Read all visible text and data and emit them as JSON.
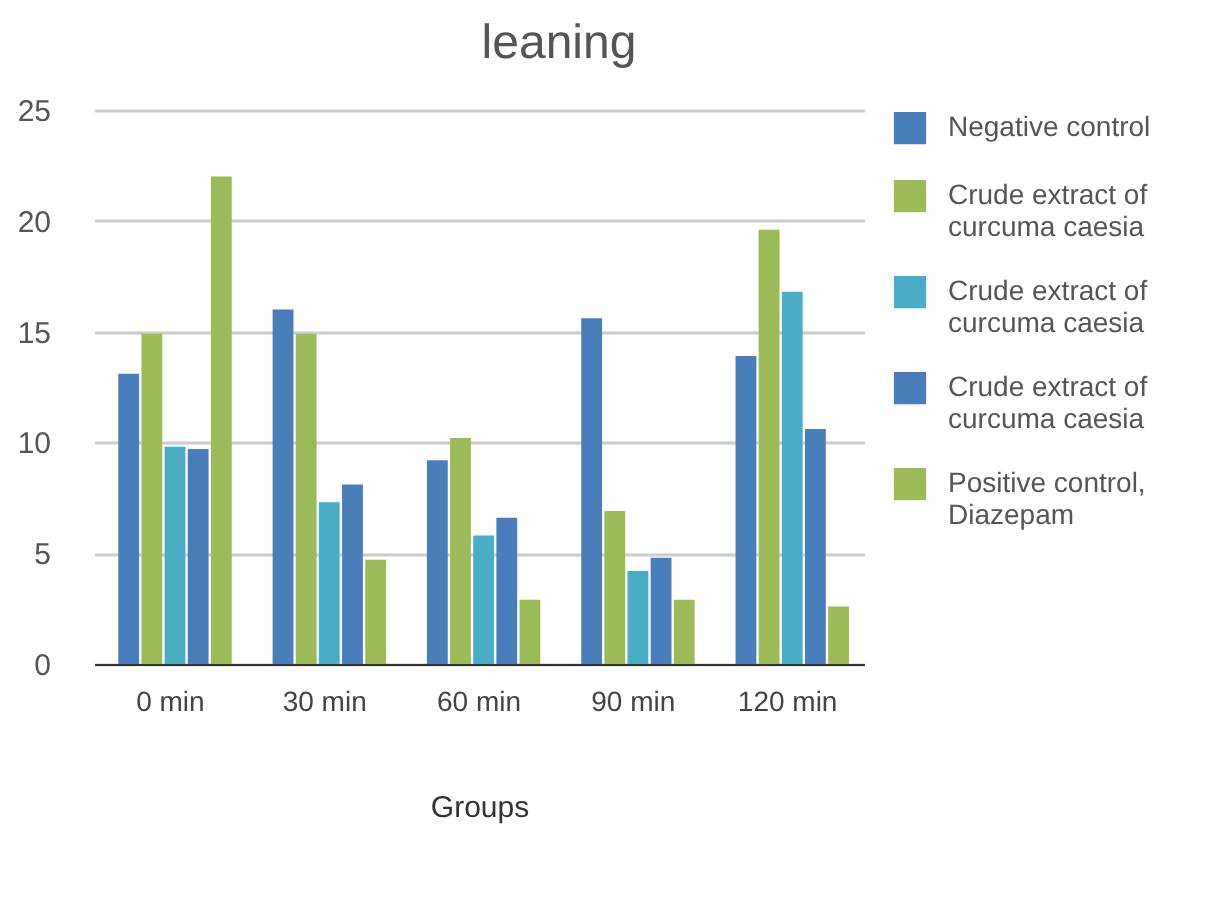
{
  "chart_data": {
    "type": "bar",
    "title": "leaning",
    "xlabel": "Groups",
    "categories": [
      "0 min",
      "30 min",
      "60 min",
      "90 min",
      "120 min"
    ],
    "series": [
      {
        "name": "Negative control",
        "color": "#4a7ebb",
        "values": [
          13.1,
          16.0,
          9.2,
          15.6,
          13.9
        ]
      },
      {
        "name": "Crude extract of curcuma caesia",
        "color": "#9bbb59",
        "values": [
          14.9,
          14.9,
          10.2,
          6.9,
          19.6
        ]
      },
      {
        "name": "Crude extract of curcuma caesia",
        "color": "#4bacc6",
        "values": [
          9.8,
          7.3,
          5.8,
          4.2,
          16.8
        ]
      },
      {
        "name": "Crude extract of curcuma caesia",
        "color": "#4a7ebb",
        "values": [
          9.7,
          8.1,
          6.6,
          4.8,
          10.6
        ]
      },
      {
        "name": "Positive control, Diazepam",
        "color": "#9bbb59",
        "values": [
          22.0,
          4.7,
          2.9,
          2.9,
          2.6
        ]
      }
    ],
    "ylim": [
      0,
      25
    ],
    "yticks": [
      0,
      5,
      10,
      15,
      20,
      25
    ],
    "grid": "y",
    "legend": "right"
  }
}
